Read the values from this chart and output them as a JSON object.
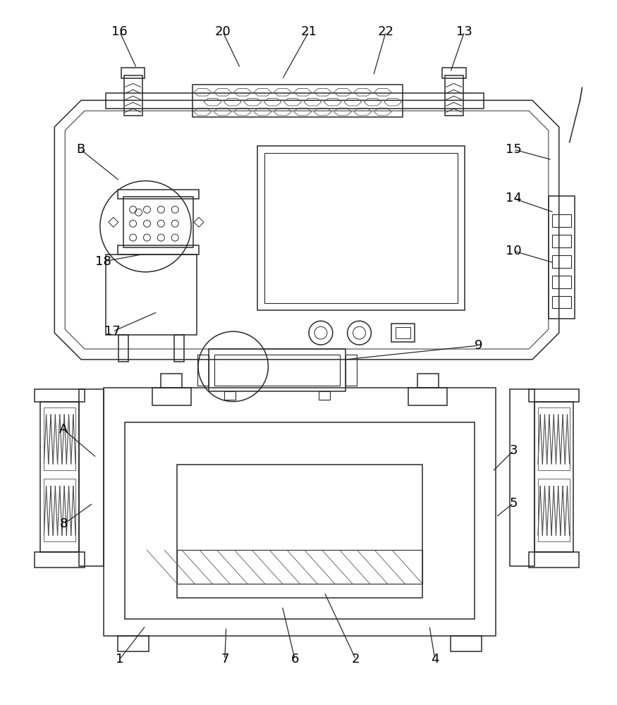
{
  "bg_color": "#ffffff",
  "line_color": "#2a2a2a",
  "lw": 1.1,
  "fig_width": 8.75,
  "fig_height": 10.0
}
